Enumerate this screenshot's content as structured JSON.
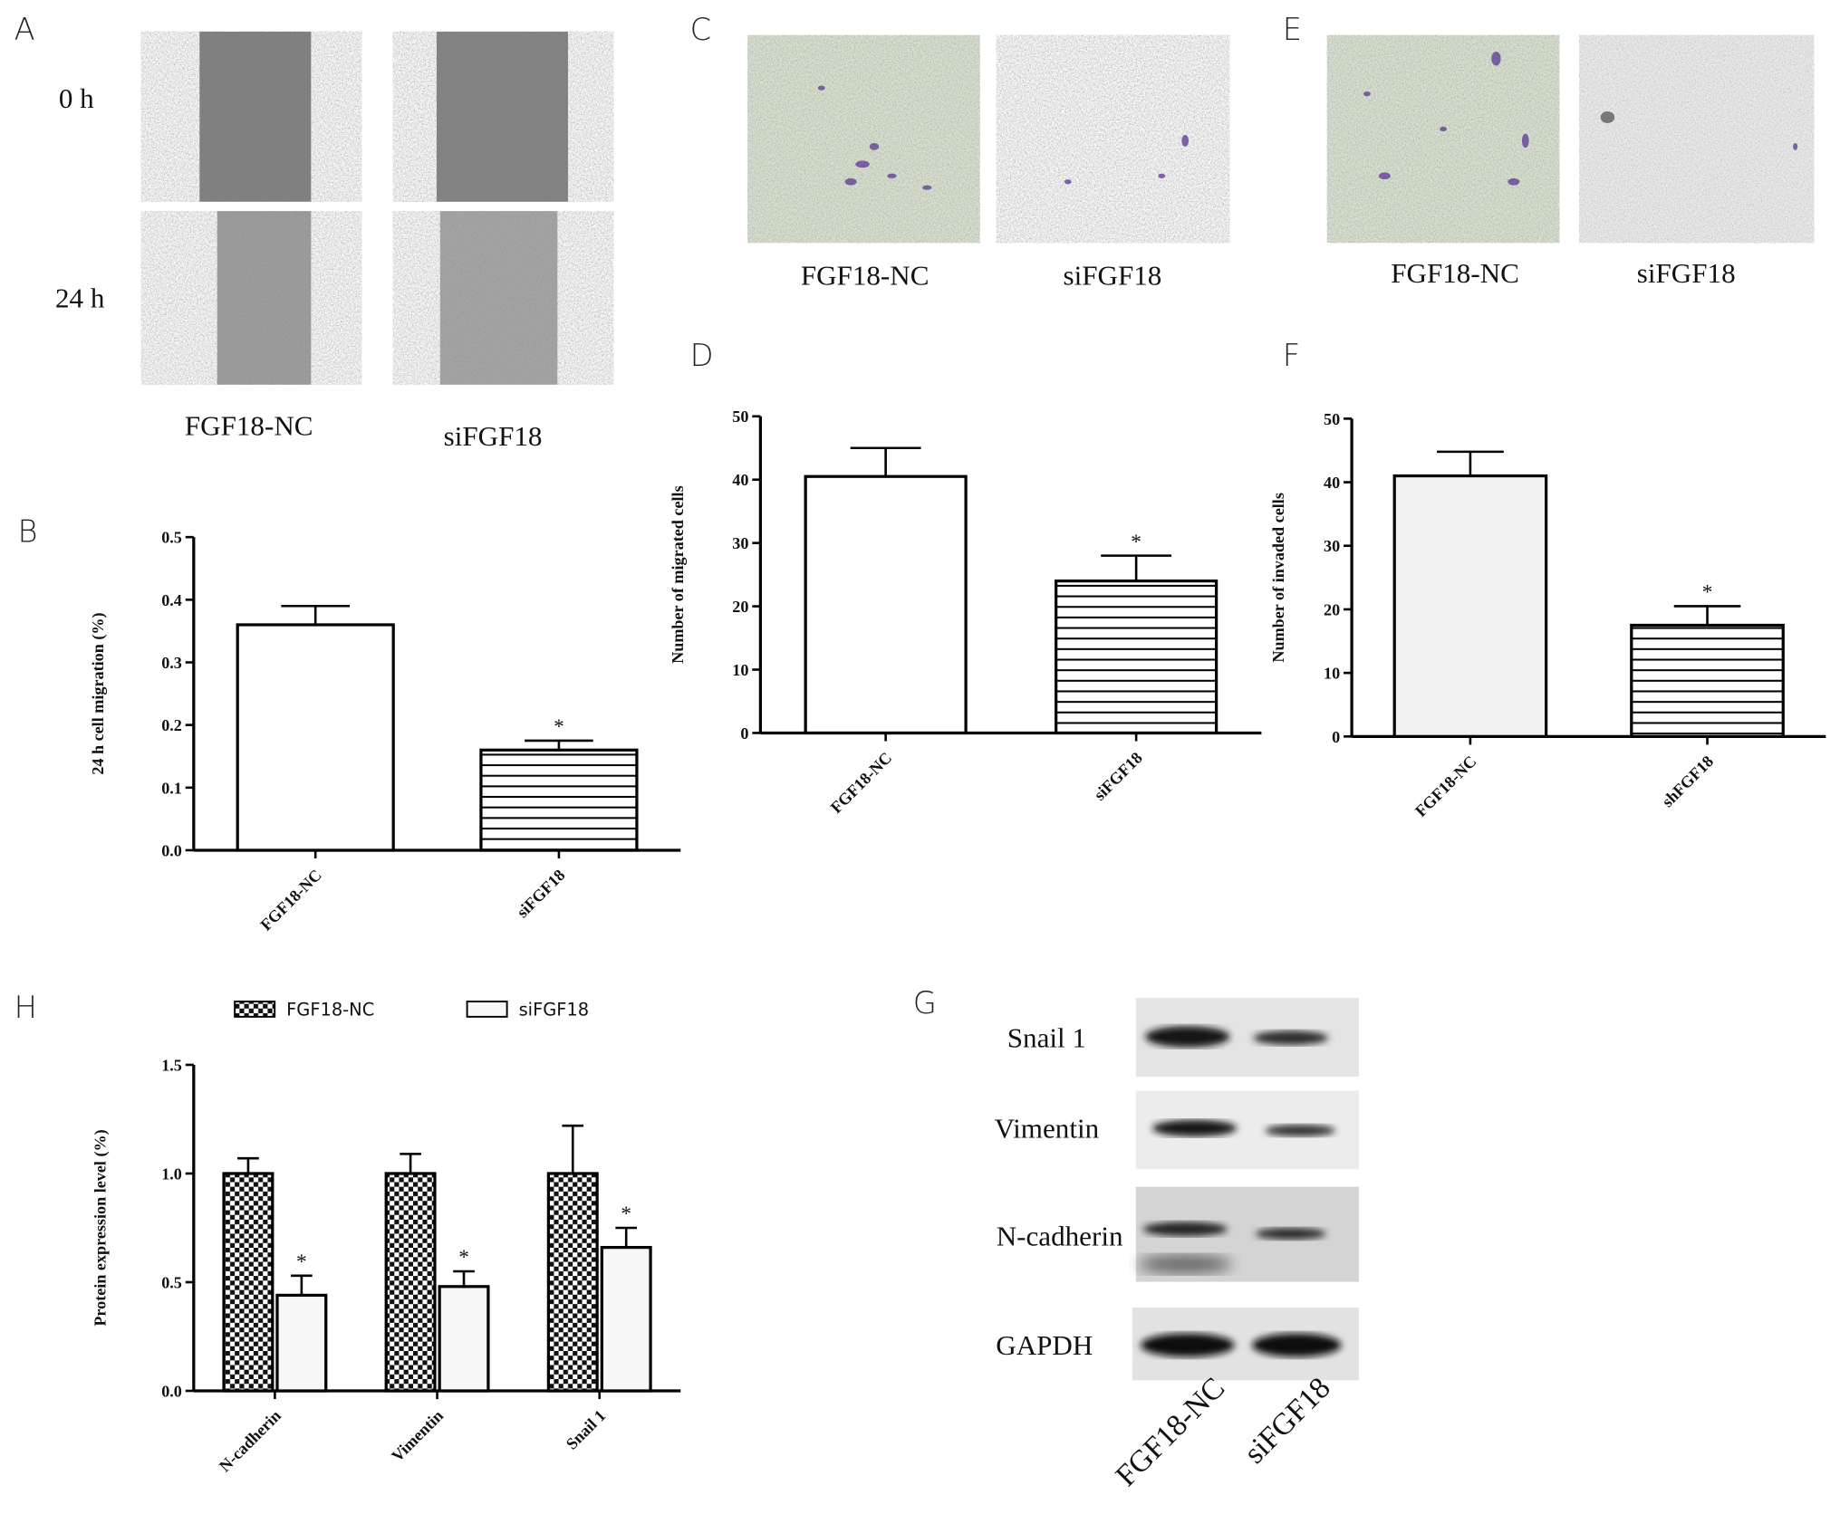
{
  "panel_letters": [
    "A",
    "B",
    "C",
    "D",
    "E",
    "F",
    "G",
    "H"
  ],
  "wound_assay": {
    "times": [
      "0 h",
      "24 h"
    ],
    "groups": [
      "FGF18-NC",
      "siFGF18"
    ]
  },
  "migration_assay": {
    "groups": [
      "FGF18-NC",
      "siFGF18"
    ]
  },
  "invasion_assay": {
    "groups": [
      "FGF18-NC",
      "siFGF18"
    ]
  },
  "western_blot": {
    "proteins": [
      "Snail 1",
      "Vimentin",
      "N-cadherin",
      "GAPDH"
    ],
    "lanes": [
      "FGF18-NC",
      "siFGF18"
    ]
  },
  "chart_data": [
    {
      "type": "bar",
      "y_label": "24 h cell migration (%)",
      "categories": [
        "FGF18-NC",
        "siFGF18"
      ],
      "values": [
        0.36,
        0.16
      ],
      "errors": [
        0.03,
        0.015
      ],
      "colors": [
        "#ffffff",
        "#ffffff"
      ],
      "patterns": [
        "none",
        "hlines"
      ],
      "significance": [
        null,
        "*"
      ],
      "ylim": [
        0,
        0.5
      ],
      "yticks": [
        {
          "value": 0,
          "label": "0.0"
        },
        0.1,
        0.2,
        0.3,
        0.4,
        0.5
      ]
    },
    {
      "type": "bar",
      "y_label": "Number of migrated cells",
      "categories": [
        "FGF18-NC",
        "siFGF18"
      ],
      "values": [
        40.5,
        24
      ],
      "errors": [
        4.5,
        4
      ],
      "colors": [
        "#ffffff",
        "#ffffff"
      ],
      "patterns": [
        "none",
        "hlines"
      ],
      "significance": [
        null,
        "*"
      ],
      "ylim": [
        0,
        50
      ],
      "yticks": [
        0,
        10,
        20,
        30,
        40,
        50
      ]
    },
    {
      "type": "bar",
      "y_label": "Number of invaded cells",
      "categories": [
        "FGF18-NC",
        "shFGF18"
      ],
      "values": [
        41,
        17.5
      ],
      "errors": [
        3.8,
        3
      ],
      "colors": [
        "#f2f2f2",
        "#ffffff"
      ],
      "patterns": [
        "none",
        "hlines"
      ],
      "significance": [
        null,
        "*"
      ],
      "ylim": [
        0,
        50
      ],
      "yticks": [
        0,
        10,
        20,
        30,
        40,
        50
      ]
    },
    {
      "type": "grouped_bar",
      "y_label": "Protein expression level (%)",
      "categories": [
        "N-cadherin",
        "Vimentin",
        "Snail 1"
      ],
      "series": [
        {
          "name": "FGF18-NC",
          "color": "#ffffff",
          "pattern": "checker",
          "values": [
            1.0,
            1.0,
            1.0
          ],
          "errors": [
            0.07,
            0.09,
            0.22
          ]
        },
        {
          "name": "siFGF18",
          "color": "#f7f7f7",
          "pattern": "none",
          "values": [
            0.44,
            0.48,
            0.66
          ],
          "errors": [
            0.09,
            0.07,
            0.09
          ],
          "significance": [
            "*",
            "*",
            "*"
          ]
        }
      ],
      "ylim": [
        0,
        1.5
      ],
      "yticks": [
        {
          "value": 0,
          "label": "0.0"
        },
        0.5,
        {
          "value": 1,
          "label": "1.0"
        },
        1.5
      ]
    }
  ]
}
